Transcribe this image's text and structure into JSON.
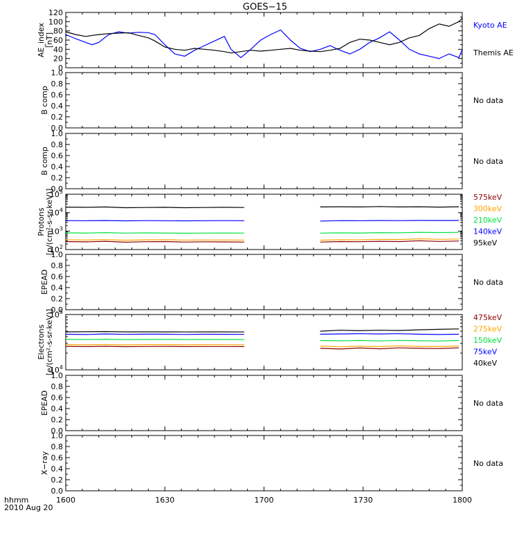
{
  "title": "GOES−15",
  "time_axis": {
    "label": "hhmm",
    "date": "2010 Aug 20",
    "ticks": [
      "1600",
      "1630",
      "1700",
      "1730",
      "1800"
    ],
    "range_minutes": [
      960,
      1080
    ]
  },
  "colors": {
    "black": "#000000",
    "blue": "#0000ff",
    "green": "#00e040",
    "orange": "#ffa500",
    "darkred": "#8b0000"
  },
  "chart_data": [
    {
      "type": "line",
      "ylabel": "AE_index",
      "yunit": "[nT]",
      "ylim": [
        0,
        120
      ],
      "yticks": [
        "0",
        "20",
        "40",
        "60",
        "80",
        "100",
        "120"
      ],
      "x": [
        960,
        963,
        966,
        968,
        970,
        973,
        976,
        979,
        982,
        985,
        987,
        990,
        993,
        996,
        999,
        1002,
        1005,
        1008,
        1010,
        1013,
        1016,
        1019,
        1022,
        1025,
        1028,
        1031,
        1034,
        1037,
        1040,
        1043,
        1046,
        1049,
        1052,
        1055,
        1058,
        1061,
        1064,
        1067,
        1070,
        1073,
        1076,
        1079,
        1080
      ],
      "series": [
        {
          "name": "Kyoto AE",
          "color": "blue",
          "values": [
            72,
            63,
            55,
            50,
            55,
            72,
            78,
            75,
            77,
            76,
            72,
            50,
            30,
            25,
            38,
            48,
            58,
            68,
            40,
            22,
            40,
            60,
            72,
            82,
            60,
            42,
            35,
            40,
            48,
            38,
            30,
            40,
            55,
            65,
            78,
            60,
            40,
            30,
            25,
            20,
            30,
            22,
            40
          ]
        },
        {
          "name": "Themis AE",
          "color": "black",
          "values": [
            78,
            72,
            68,
            70,
            72,
            74,
            75,
            76,
            70,
            65,
            58,
            45,
            40,
            38,
            42,
            40,
            38,
            35,
            32,
            35,
            38,
            36,
            38,
            40,
            42,
            38,
            36,
            35,
            38,
            42,
            55,
            62,
            60,
            55,
            50,
            55,
            65,
            70,
            85,
            95,
            90,
            100,
            108
          ]
        }
      ]
    },
    {
      "type": "line",
      "ylabel": "B comp",
      "ylim": [
        0,
        1
      ],
      "yticks": [
        "0.0",
        "0.2",
        "0.4",
        "0.6",
        "0.8",
        "1.0"
      ],
      "note": "No data",
      "series": []
    },
    {
      "type": "line",
      "ylabel": "B comp",
      "ylim": [
        0,
        1
      ],
      "yticks": [
        "0.0",
        "0.2",
        "0.4",
        "0.6",
        "0.8",
        "1.0"
      ],
      "note": "No data",
      "series": []
    },
    {
      "type": "line",
      "ylabel": "Protons",
      "yunit": "[p/(cm²-s-sr-keV)]",
      "yscale": "log",
      "ylim": [
        100,
        100000
      ],
      "yticks": [
        {
          "base": "10",
          "exp": "2",
          "value": 100
        },
        {
          "base": "10",
          "exp": "3",
          "value": 1000
        },
        {
          "base": "10",
          "exp": "4",
          "value": 10000
        },
        {
          "base": "10",
          "exp": "5",
          "value": 100000
        }
      ],
      "gap_minutes": [
        1015,
        1037
      ],
      "x": [
        960,
        966,
        972,
        978,
        984,
        990,
        996,
        1002,
        1008,
        1014,
        1037,
        1043,
        1049,
        1055,
        1061,
        1067,
        1073,
        1079
      ],
      "series": [
        {
          "name": "575keV",
          "color": "darkred",
          "values": [
            270,
            260,
            280,
            250,
            265,
            270,
            255,
            262,
            258,
            255,
            255,
            270,
            265,
            280,
            270,
            300,
            275,
            290
          ]
        },
        {
          "name": "300keV",
          "color": "orange",
          "values": [
            340,
            330,
            345,
            320,
            335,
            340,
            325,
            330,
            328,
            325,
            320,
            340,
            335,
            355,
            350,
            380,
            360,
            370
          ]
        },
        {
          "name": "210keV",
          "color": "green",
          "values": [
            800,
            790,
            820,
            780,
            800,
            790,
            770,
            780,
            790,
            780,
            780,
            800,
            790,
            820,
            810,
            860,
            830,
            850
          ]
        },
        {
          "name": "140keV",
          "color": "blue",
          "values": [
            3700,
            3650,
            3750,
            3600,
            3700,
            3650,
            3600,
            3650,
            3700,
            3650,
            3500,
            3700,
            3650,
            3750,
            3700,
            3800,
            3750,
            3800
          ]
        },
        {
          "name": "95keV",
          "color": "black",
          "values": [
            20000,
            19500,
            20500,
            18500,
            19000,
            19500,
            18500,
            19000,
            19500,
            19000,
            20500,
            21000,
            20500,
            21500,
            20500,
            21000,
            20000,
            21000
          ]
        }
      ]
    },
    {
      "type": "line",
      "ylabel": "EPEAD",
      "ylim": [
        0,
        1
      ],
      "yticks": [
        "0.0",
        "0.2",
        "0.4",
        "0.6",
        "0.8",
        "1.0"
      ],
      "note": "No data",
      "series": []
    },
    {
      "type": "line",
      "ylabel": "Electrons",
      "yunit": "[e/(cm²-s-sr-keV)]",
      "yscale": "log",
      "ylim": [
        10000,
        100000
      ],
      "yticks": [
        {
          "base": "10",
          "exp": "4",
          "value": 10000
        },
        {
          "base": "10",
          "exp": "5",
          "value": 100000
        }
      ],
      "gap_minutes": [
        1015,
        1037
      ],
      "x": [
        960,
        966,
        972,
        978,
        984,
        990,
        996,
        1002,
        1008,
        1014,
        1037,
        1043,
        1049,
        1055,
        1061,
        1067,
        1073,
        1079
      ],
      "series": [
        {
          "name": "475keV",
          "color": "darkred",
          "values": [
            26500,
            26300,
            26600,
            26200,
            26400,
            26500,
            26300,
            26400,
            26350,
            26300,
            24500,
            23800,
            24800,
            24000,
            25000,
            24500,
            24200,
            25000
          ]
        },
        {
          "name": "275keV",
          "color": "orange",
          "values": [
            28500,
            28400,
            28600,
            28300,
            28500,
            28600,
            28400,
            28500,
            28450,
            28400,
            27000,
            26000,
            26800,
            26200,
            27200,
            26500,
            26300,
            27000
          ]
        },
        {
          "name": "150keV",
          "color": "green",
          "values": [
            35500,
            35300,
            35600,
            35200,
            35400,
            35500,
            35300,
            35400,
            35350,
            35300,
            34000,
            33500,
            34000,
            33300,
            34200,
            33600,
            33200,
            34000
          ]
        },
        {
          "name": "75keV",
          "color": "blue",
          "values": [
            44000,
            43500,
            44500,
            43800,
            44200,
            44000,
            43700,
            44000,
            43900,
            43800,
            44000,
            44500,
            45000,
            44500,
            45000,
            44000,
            43500,
            44000
          ]
        },
        {
          "name": "40keV",
          "color": "black",
          "values": [
            48500,
            48800,
            49200,
            48500,
            48700,
            48500,
            48400,
            48600,
            48500,
            48400,
            50000,
            52000,
            51000,
            52000,
            51500,
            53000,
            54000,
            55000
          ]
        }
      ]
    },
    {
      "type": "line",
      "ylabel": "EPEAD",
      "ylim": [
        0,
        1
      ],
      "yticks": [
        "0.0",
        "0.2",
        "0.4",
        "0.6",
        "0.8",
        "1.0"
      ],
      "note": "No data",
      "series": []
    },
    {
      "type": "line",
      "ylabel": "X−ray",
      "ylim": [
        0,
        1
      ],
      "yticks": [
        "0.0",
        "0.2",
        "0.4",
        "0.6",
        "0.8",
        "1.0"
      ],
      "note": "No data",
      "series": []
    }
  ]
}
